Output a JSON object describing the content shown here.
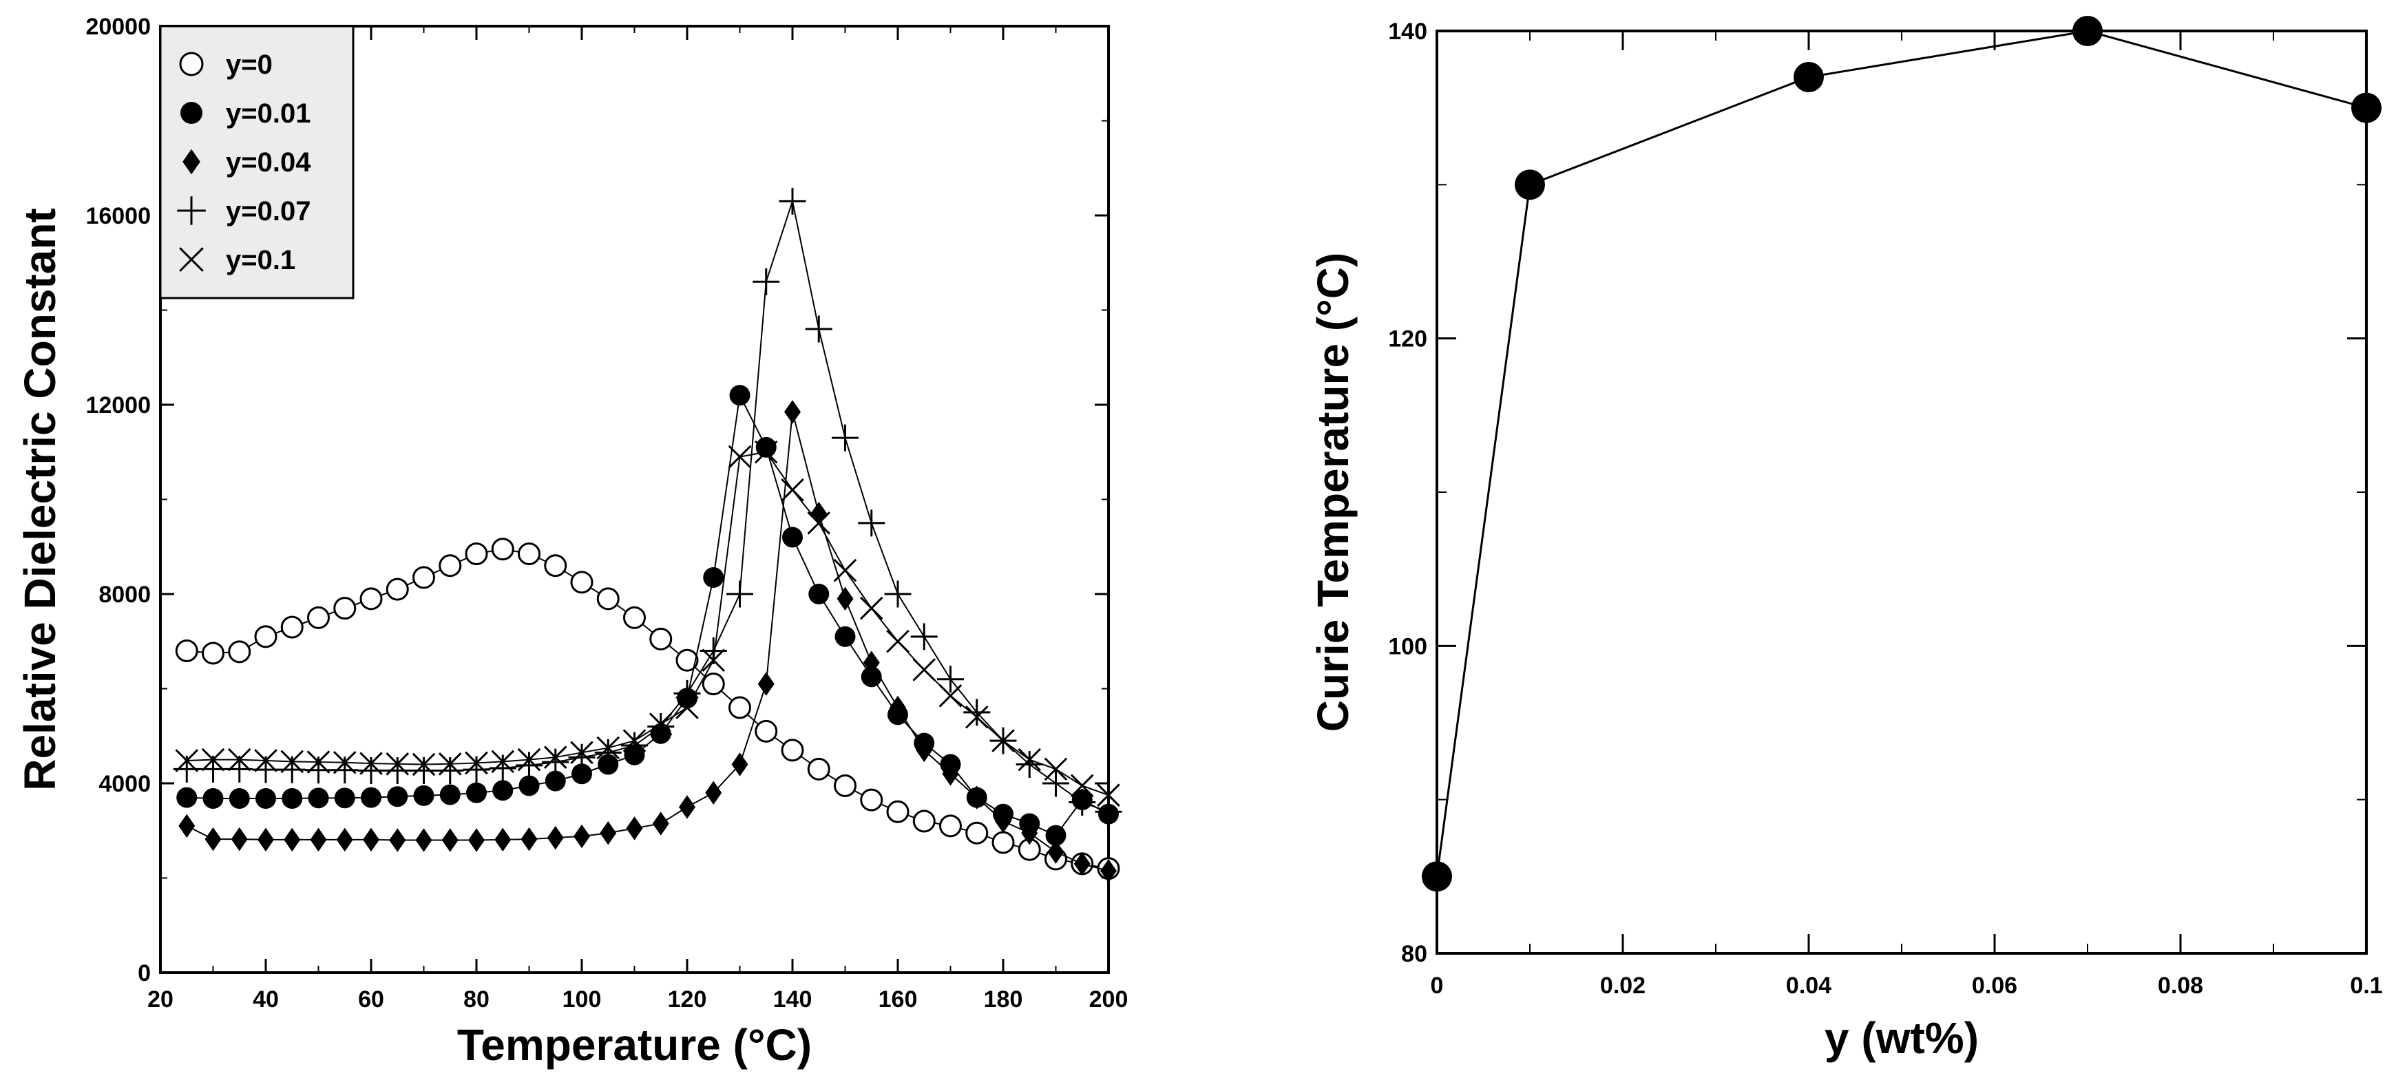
{
  "colors": {
    "axis": "#000000",
    "legend_bg": "#ececec",
    "background": "#ffffff"
  },
  "chart_data": [
    {
      "type": "line",
      "title": "",
      "xlabel": "Temperature (°C)",
      "ylabel": "Relative Dielectric Constant",
      "xlim": [
        20,
        200
      ],
      "ylim": [
        0,
        20000
      ],
      "x_ticks": [
        20,
        40,
        60,
        80,
        100,
        120,
        140,
        160,
        180,
        200
      ],
      "y_ticks": [
        0,
        4000,
        8000,
        12000,
        16000,
        20000
      ],
      "grid": false,
      "legend_position": "top-left",
      "series": [
        {
          "name": "y=0",
          "marker": "open-circle",
          "x": [
            25,
            30,
            35,
            40,
            45,
            50,
            55,
            60,
            65,
            70,
            75,
            80,
            85,
            90,
            95,
            100,
            105,
            110,
            115,
            120,
            125,
            130,
            135,
            140,
            145,
            150,
            155,
            160,
            165,
            170,
            175,
            180,
            185,
            190,
            195,
            200
          ],
          "y": [
            6800,
            6750,
            6780,
            7100,
            7300,
            7500,
            7700,
            7900,
            8100,
            8350,
            8600,
            8850,
            8950,
            8850,
            8600,
            8250,
            7900,
            7500,
            7050,
            6600,
            6100,
            5600,
            5100,
            4700,
            4300,
            3950,
            3650,
            3400,
            3200,
            3100,
            2950,
            2750,
            2600,
            2400,
            2300,
            2200
          ]
        },
        {
          "name": "y=0.01",
          "marker": "filled-circle",
          "x": [
            25,
            30,
            35,
            40,
            45,
            50,
            55,
            60,
            65,
            70,
            75,
            80,
            85,
            90,
            95,
            100,
            105,
            110,
            115,
            120,
            125,
            130,
            135,
            140,
            145,
            150,
            155,
            160,
            165,
            170,
            175,
            180,
            185,
            190,
            195,
            200
          ],
          "y": [
            3700,
            3680,
            3680,
            3680,
            3680,
            3690,
            3690,
            3700,
            3720,
            3740,
            3760,
            3800,
            3850,
            3950,
            4050,
            4200,
            4400,
            4600,
            5050,
            5800,
            8350,
            12200,
            11100,
            9200,
            8000,
            7100,
            6250,
            5450,
            4850,
            4400,
            3700,
            3350,
            3150,
            2900,
            3650,
            3350
          ]
        },
        {
          "name": "y=0.04",
          "marker": "filled-diamond",
          "x": [
            25,
            30,
            35,
            40,
            45,
            50,
            55,
            60,
            65,
            70,
            75,
            80,
            85,
            90,
            95,
            100,
            105,
            110,
            115,
            120,
            125,
            130,
            135,
            140,
            145,
            150,
            155,
            160,
            165,
            170,
            175,
            180,
            185,
            190,
            195,
            200
          ],
          "y": [
            3100,
            2820,
            2820,
            2810,
            2810,
            2810,
            2810,
            2810,
            2800,
            2800,
            2800,
            2800,
            2810,
            2820,
            2850,
            2880,
            2950,
            3050,
            3150,
            3500,
            3800,
            4400,
            6100,
            11850,
            9700,
            7900,
            6550,
            5600,
            4700,
            4200,
            3700,
            3200,
            2950,
            2550,
            2300,
            2150
          ]
        },
        {
          "name": "y=0.07",
          "marker": "plus",
          "x": [
            25,
            30,
            35,
            40,
            45,
            50,
            55,
            60,
            65,
            70,
            75,
            80,
            85,
            90,
            95,
            100,
            105,
            110,
            115,
            120,
            125,
            130,
            135,
            140,
            145,
            150,
            155,
            160,
            165,
            170,
            175,
            180,
            185,
            190,
            195,
            200
          ],
          "y": [
            4300,
            4300,
            4300,
            4290,
            4290,
            4280,
            4280,
            4270,
            4270,
            4270,
            4270,
            4290,
            4320,
            4380,
            4450,
            4550,
            4650,
            4800,
            5200,
            5900,
            6800,
            8000,
            14600,
            16300,
            13600,
            11300,
            9500,
            8000,
            7100,
            6200,
            5500,
            4900,
            4400,
            4000,
            3600,
            3400
          ]
        },
        {
          "name": "y=0.1",
          "marker": "x",
          "x": [
            25,
            30,
            35,
            40,
            45,
            50,
            55,
            60,
            65,
            70,
            75,
            80,
            85,
            90,
            95,
            100,
            105,
            110,
            115,
            120,
            125,
            130,
            135,
            140,
            145,
            150,
            155,
            160,
            165,
            170,
            175,
            180,
            185,
            190,
            195,
            200
          ],
          "y": [
            4480,
            4500,
            4500,
            4480,
            4460,
            4450,
            4440,
            4420,
            4410,
            4400,
            4410,
            4430,
            4460,
            4500,
            4550,
            4650,
            4750,
            4900,
            5250,
            5600,
            6600,
            10900,
            11000,
            10200,
            9500,
            8500,
            7700,
            7000,
            6400,
            5850,
            5400,
            4900,
            4500,
            4300,
            3950,
            3750
          ]
        }
      ],
      "legend": {
        "entries": [
          "y=0",
          "y=0.01",
          "y=0.04",
          "y=0.07",
          "y=0.1"
        ]
      }
    },
    {
      "type": "line",
      "title": "",
      "xlabel": "y (wt%)",
      "ylabel": "Curie Temperature (°C)",
      "xlim": [
        0,
        0.1
      ],
      "ylim": [
        80,
        140
      ],
      "x_ticks": [
        0,
        0.02,
        0.04,
        0.06,
        0.08,
        0.1
      ],
      "x_tick_labels": [
        "0",
        "0.02",
        "0.04",
        "0.06",
        "0.08",
        "0.1"
      ],
      "y_ticks": [
        80,
        100,
        120,
        140
      ],
      "grid": false,
      "series": [
        {
          "name": "Curie temperature",
          "marker": "filled-circle",
          "x": [
            0,
            0.01,
            0.04,
            0.07,
            0.1
          ],
          "y": [
            85,
            130,
            137,
            140,
            135
          ]
        }
      ]
    }
  ]
}
